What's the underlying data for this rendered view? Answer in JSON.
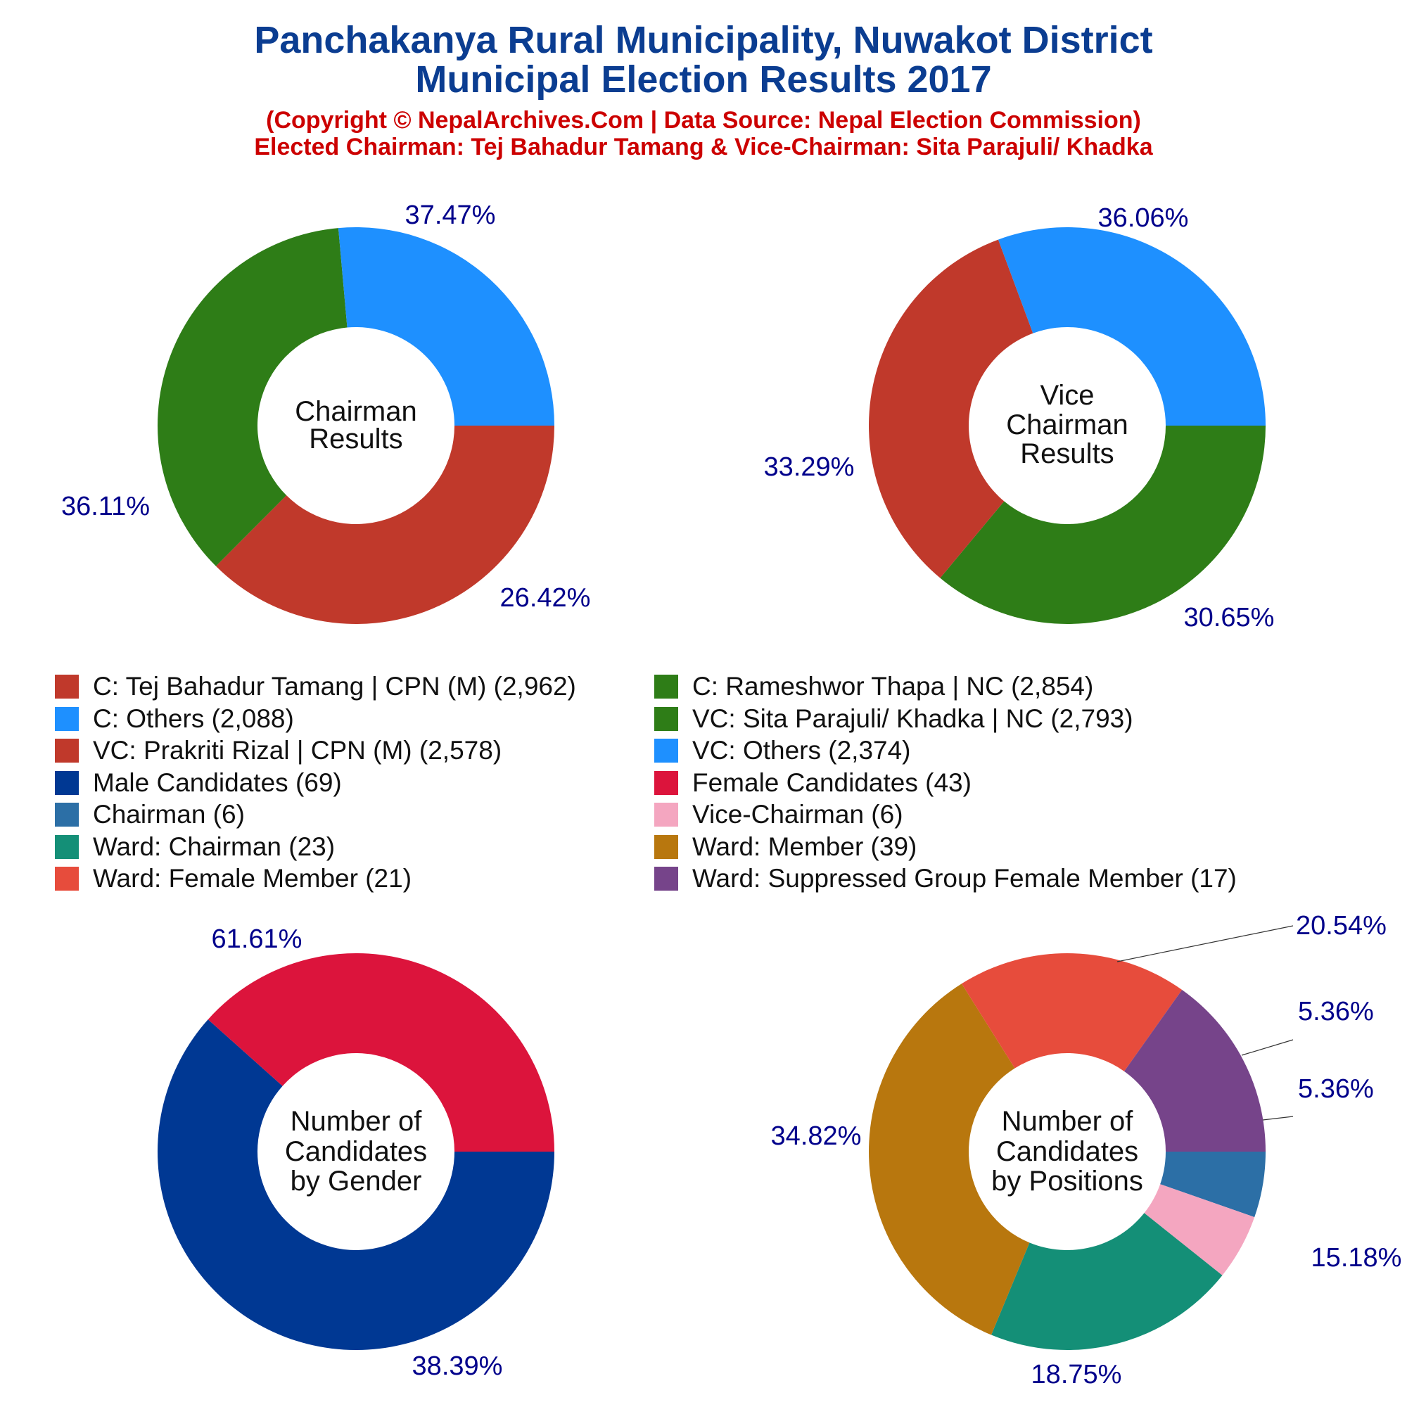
{
  "header": {
    "title_line1": "Panchakanya Rural Municipality, Nuwakot District",
    "title_line2": "Municipal Election Results 2017",
    "subtitle_line1": "(Copyright © NepalArchives.Com | Data Source: Nepal Election Commission)",
    "subtitle_line2": "Elected Chairman: Tej Bahadur Tamang & Vice-Chairman: Sita Parajuli/ Khadka"
  },
  "colors": {
    "cpn_red": "#c0392b",
    "others_blue": "#1e90ff",
    "nc_green": "#2e7d17",
    "male_navy": "#003893",
    "female_crimson": "#dc143c",
    "chairman_steel": "#2c6fa6",
    "vice_pink": "#f4a6c0",
    "ward_chair_teal": "#148f77",
    "ward_member_gold": "#b8770e",
    "ward_female_coral": "#e74c3c",
    "suppressed_purple": "#76448a",
    "percent_text": "#00008b",
    "title_blue": "#0b3d91",
    "subtitle_red": "#cc0000"
  },
  "legend": [
    {
      "label": "C: Tej Bahadur Tamang | CPN (M) (2,962)",
      "color": "#c0392b"
    },
    {
      "label": "C: Rameshwor Thapa | NC (2,854)",
      "color": "#2e7d17"
    },
    {
      "label": "C: Others (2,088)",
      "color": "#1e90ff"
    },
    {
      "label": "VC: Sita Parajuli/ Khadka | NC (2,793)",
      "color": "#2e7d17"
    },
    {
      "label": "VC: Prakriti Rizal | CPN (M) (2,578)",
      "color": "#c0392b"
    },
    {
      "label": "VC: Others (2,374)",
      "color": "#1e90ff"
    },
    {
      "label": "Male Candidates (69)",
      "color": "#003893"
    },
    {
      "label": "Female Candidates (43)",
      "color": "#dc143c"
    },
    {
      "label": "Chairman (6)",
      "color": "#2c6fa6"
    },
    {
      "label": "Vice-Chairman (6)",
      "color": "#f4a6c0"
    },
    {
      "label": "Ward: Chairman (23)",
      "color": "#148f77"
    },
    {
      "label": "Ward: Member (39)",
      "color": "#b8770e"
    },
    {
      "label": "Ward: Female Member (21)",
      "color": "#e74c3c"
    },
    {
      "label": "Ward: Suppressed Group Female Member (17)",
      "color": "#76448a"
    }
  ],
  "chart_data": [
    {
      "type": "pie",
      "donut": true,
      "center_label": [
        "Chairman",
        "Results"
      ],
      "slices": [
        {
          "name": "C: Tej Bahadur Tamang | CPN (M)",
          "value": 2962,
          "percent_label": "37.47%",
          "color": "#c0392b"
        },
        {
          "name": "C: Rameshwor Thapa | NC",
          "value": 2854,
          "percent_label": "36.11%",
          "color": "#2e7d17"
        },
        {
          "name": "C: Others",
          "value": 2088,
          "percent_label": "26.42%",
          "color": "#1e90ff"
        }
      ]
    },
    {
      "type": "pie",
      "donut": true,
      "center_label": [
        "Vice",
        "Chairman",
        "Results"
      ],
      "slices": [
        {
          "name": "VC: Sita Parajuli/ Khadka | NC",
          "value": 2793,
          "percent_label": "36.06%",
          "color": "#2e7d17"
        },
        {
          "name": "VC: Prakriti Rizal | CPN (M)",
          "value": 2578,
          "percent_label": "33.29%",
          "color": "#c0392b"
        },
        {
          "name": "VC: Others",
          "value": 2374,
          "percent_label": "30.65%",
          "color": "#1e90ff"
        }
      ]
    },
    {
      "type": "pie",
      "donut": true,
      "center_label": [
        "Number of",
        "Candidates",
        "by Gender"
      ],
      "slices": [
        {
          "name": "Male Candidates",
          "value": 69,
          "percent_label": "61.61%",
          "color": "#003893"
        },
        {
          "name": "Female Candidates",
          "value": 43,
          "percent_label": "38.39%",
          "color": "#dc143c"
        }
      ]
    },
    {
      "type": "pie",
      "donut": true,
      "center_label": [
        "Number of",
        "Candidates",
        "by Positions"
      ],
      "slices": [
        {
          "name": "Chairman",
          "value": 6,
          "percent_label": "5.36%",
          "color": "#2c6fa6"
        },
        {
          "name": "Vice-Chairman",
          "value": 6,
          "percent_label": "5.36%",
          "color": "#f4a6c0"
        },
        {
          "name": "Ward: Chairman",
          "value": 23,
          "percent_label": "20.54%",
          "color": "#148f77"
        },
        {
          "name": "Ward: Member",
          "value": 39,
          "percent_label": "34.82%",
          "color": "#b8770e"
        },
        {
          "name": "Ward: Female Member",
          "value": 21,
          "percent_label": "18.75%",
          "color": "#e74c3c"
        },
        {
          "name": "Ward: Suppressed Group Female Member",
          "value": 17,
          "percent_label": "15.18%",
          "color": "#76448a"
        }
      ]
    }
  ]
}
